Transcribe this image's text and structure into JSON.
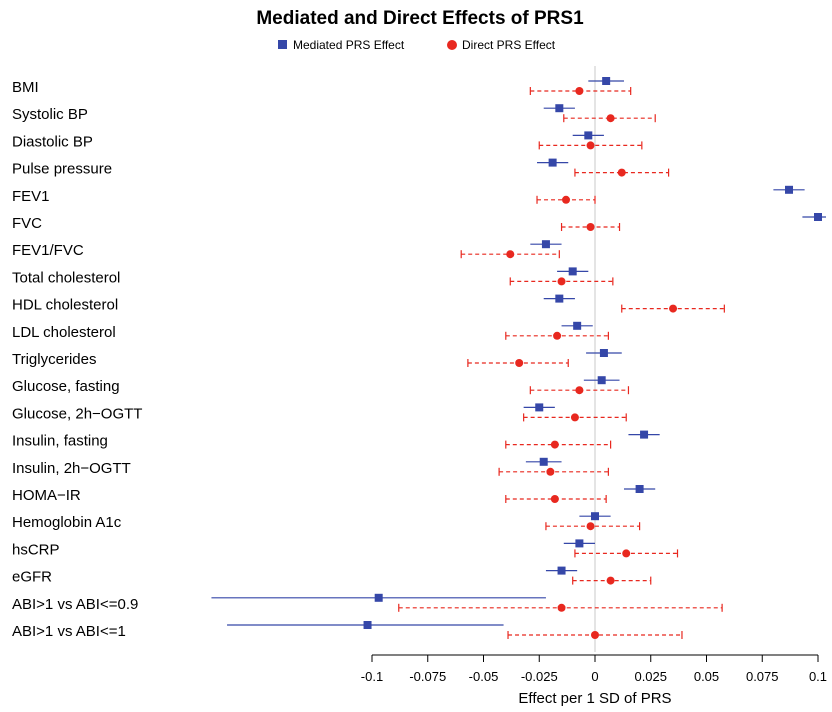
{
  "chart_data": {
    "type": "forest",
    "title": "Mediated and Direct Effects of PRS1",
    "xlabel": "Effect per 1 SD of PRS",
    "xlim": [
      -0.1,
      0.1
    ],
    "xticks": [
      -0.1,
      -0.075,
      -0.05,
      -0.025,
      0,
      0.025,
      0.05,
      0.075,
      0.1
    ],
    "xtick_labels": [
      "-0.1",
      "-0.075",
      "-0.05",
      "-0.025",
      "0",
      "0.025",
      "0.05",
      "0.075",
      "0.1"
    ],
    "legend_position": "top",
    "categories": [
      "BMI",
      "Systolic BP",
      "Diastolic BP",
      "Pulse pressure",
      "FEV1",
      "FVC",
      "FEV1/FVC",
      "Total cholesterol",
      "HDL cholesterol",
      "LDL cholesterol",
      "Triglycerides",
      "Glucose, fasting",
      "Glucose, 2h−OGTT",
      "Insulin, fasting",
      "Insulin, 2h−OGTT",
      "HOMA−IR",
      "Hemoglobin A1c",
      "hsCRP",
      "eGFR",
      "ABI>1 vs ABI<=0.9",
      "ABI>1 vs ABI<=1"
    ],
    "series": [
      {
        "name": "Mediated PRS Effect",
        "marker": "square",
        "color": "#3547a8",
        "linestyle": "solid",
        "values": [
          0.005,
          -0.016,
          -0.003,
          -0.019,
          0.087,
          0.1,
          -0.022,
          -0.01,
          -0.016,
          -0.008,
          0.004,
          0.003,
          -0.025,
          0.022,
          -0.023,
          0.02,
          0.0,
          -0.007,
          -0.015,
          -0.097,
          -0.102
        ],
        "lower": [
          -0.003,
          -0.023,
          -0.01,
          -0.026,
          0.08,
          0.093,
          -0.029,
          -0.017,
          -0.023,
          -0.015,
          -0.004,
          -0.005,
          -0.032,
          0.015,
          -0.031,
          0.013,
          -0.007,
          -0.014,
          -0.022,
          -0.172,
          -0.165
        ],
        "upper": [
          0.013,
          -0.009,
          0.004,
          -0.012,
          0.094,
          0.107,
          -0.015,
          -0.003,
          -0.009,
          -0.001,
          0.012,
          0.011,
          -0.018,
          0.029,
          -0.015,
          0.027,
          0.007,
          0.0,
          -0.008,
          -0.022,
          -0.041
        ]
      },
      {
        "name": "Direct PRS Effect",
        "marker": "circle",
        "color": "#e8281f",
        "linestyle": "dashed",
        "values": [
          -0.007,
          0.007,
          -0.002,
          0.012,
          -0.013,
          -0.002,
          -0.038,
          -0.015,
          0.035,
          -0.017,
          -0.034,
          -0.007,
          -0.009,
          -0.018,
          -0.02,
          -0.018,
          -0.002,
          0.014,
          0.007,
          -0.015,
          0.0
        ],
        "lower": [
          -0.029,
          -0.014,
          -0.025,
          -0.009,
          -0.026,
          -0.015,
          -0.06,
          -0.038,
          0.012,
          -0.04,
          -0.057,
          -0.029,
          -0.032,
          -0.04,
          -0.043,
          -0.04,
          -0.022,
          -0.009,
          -0.01,
          -0.088,
          -0.039
        ],
        "upper": [
          0.016,
          0.027,
          0.021,
          0.033,
          0.0,
          0.011,
          -0.016,
          0.008,
          0.058,
          0.006,
          -0.012,
          0.015,
          0.014,
          0.007,
          0.006,
          0.005,
          0.02,
          0.037,
          0.025,
          0.057,
          0.039
        ]
      }
    ]
  }
}
